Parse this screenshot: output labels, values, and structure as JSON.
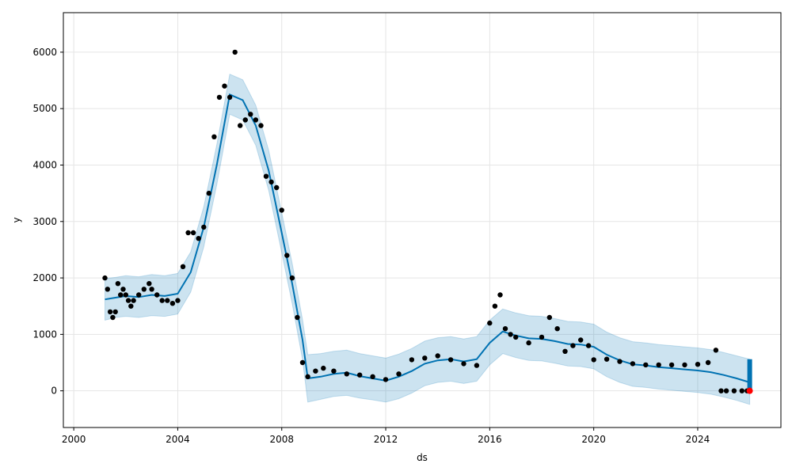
{
  "chart_data": {
    "type": "line",
    "title": "",
    "xlabel": "ds",
    "ylabel": "y",
    "xlim": [
      1999.6,
      2027.2
    ],
    "ylim": [
      -650,
      6700
    ],
    "grid": true,
    "x_ticks": [
      2000,
      2004,
      2008,
      2012,
      2016,
      2020,
      2024
    ],
    "x_tick_labels": [
      "2000",
      "2004",
      "2008",
      "2012",
      "2016",
      "2020",
      "2024"
    ],
    "y_ticks": [
      0,
      1000,
      2000,
      3000,
      4000,
      5000,
      6000
    ],
    "y_tick_labels": [
      "0",
      "1000",
      "2000",
      "3000",
      "4000",
      "5000",
      "6000"
    ],
    "colors": {
      "observed": "#000000",
      "forecast": "#0072B2",
      "interval": "#0072B2",
      "highlight": "#ff0000",
      "grid": "#e5e5e5"
    },
    "series": [
      {
        "role": "observed",
        "kind": "scatter",
        "x": [
          2001.2,
          2001.3,
          2001.4,
          2001.5,
          2001.6,
          2001.7,
          2001.8,
          2001.9,
          2002.0,
          2002.1,
          2002.2,
          2002.3,
          2002.5,
          2002.7,
          2002.9,
          2003.0,
          2003.2,
          2003.4,
          2003.6,
          2003.8,
          2004.0,
          2004.2,
          2004.4,
          2004.6,
          2004.8,
          2005.0,
          2005.2,
          2005.4,
          2005.6,
          2005.8,
          2006.0,
          2006.2,
          2006.4,
          2006.6,
          2006.8,
          2007.0,
          2007.2,
          2007.4,
          2007.6,
          2007.8,
          2008.0,
          2008.2,
          2008.4,
          2008.6,
          2008.8,
          2009.0,
          2009.3,
          2009.6,
          2010.0,
          2010.5,
          2011.0,
          2011.5,
          2012.0,
          2012.5,
          2013.0,
          2013.5,
          2014.0,
          2014.5,
          2015.0,
          2015.5,
          2016.0,
          2016.2,
          2016.4,
          2016.6,
          2016.8,
          2017.0,
          2017.5,
          2018.0,
          2018.3,
          2018.6,
          2018.9,
          2019.2,
          2019.5,
          2019.8,
          2020.0,
          2020.5,
          2021.0,
          2021.5,
          2022.0,
          2022.5,
          2023.0,
          2023.5,
          2024.0,
          2024.4,
          2024.7,
          2024.9,
          2025.1,
          2025.4,
          2025.7,
          2025.9
        ],
        "y": [
          2000,
          1800,
          1400,
          1300,
          1400,
          1900,
          1700,
          1800,
          1700,
          1600,
          1500,
          1600,
          1700,
          1800,
          1900,
          1800,
          1700,
          1600,
          1600,
          1550,
          1600,
          2200,
          2800,
          2800,
          2700,
          2900,
          3500,
          4500,
          5200,
          5400,
          5200,
          6000,
          4700,
          4800,
          4900,
          4800,
          4700,
          3800,
          3700,
          3600,
          3200,
          2400,
          2000,
          1300,
          500,
          250,
          350,
          400,
          350,
          300,
          280,
          250,
          200,
          300,
          550,
          580,
          620,
          550,
          480,
          450,
          1200,
          1500,
          1700,
          1100,
          1000,
          950,
          850,
          950,
          1300,
          1100,
          700,
          800,
          900,
          800,
          550,
          560,
          520,
          480,
          460,
          460,
          460,
          460,
          470,
          500,
          720,
          0,
          0,
          0,
          0,
          0
        ]
      },
      {
        "role": "forecast",
        "kind": "line",
        "x": [
          2001.2,
          2001.6,
          2002.0,
          2002.5,
          2003.0,
          2003.5,
          2004.0,
          2004.5,
          2005.0,
          2005.5,
          2006.0,
          2006.5,
          2007.0,
          2007.5,
          2008.0,
          2008.4,
          2008.8,
          2009.0,
          2009.5,
          2010.0,
          2010.5,
          2011.0,
          2011.5,
          2012.0,
          2012.5,
          2013.0,
          2013.5,
          2014.0,
          2014.5,
          2015.0,
          2015.5,
          2016.0,
          2016.5,
          2017.0,
          2017.5,
          2018.0,
          2018.5,
          2019.0,
          2019.5,
          2020.0,
          2020.5,
          2021.0,
          2021.5,
          2022.0,
          2022.5,
          2023.0,
          2023.5,
          2024.0,
          2024.5,
          2025.0,
          2025.5,
          2026.0
        ],
        "y": [
          1620,
          1650,
          1680,
          1660,
          1700,
          1680,
          1720,
          2100,
          2900,
          4000,
          5250,
          5150,
          4700,
          3900,
          2800,
          1900,
          900,
          220,
          250,
          300,
          320,
          260,
          220,
          180,
          250,
          350,
          480,
          540,
          560,
          520,
          560,
          850,
          1050,
          980,
          930,
          920,
          880,
          830,
          820,
          780,
          640,
          540,
          470,
          450,
          420,
          400,
          380,
          360,
          330,
          280,
          220,
          150
        ]
      },
      {
        "role": "uncertainty_interval",
        "kind": "area",
        "x": [
          2001.2,
          2001.6,
          2002.0,
          2002.5,
          2003.0,
          2003.5,
          2004.0,
          2004.5,
          2005.0,
          2005.5,
          2006.0,
          2006.5,
          2007.0,
          2007.5,
          2008.0,
          2008.4,
          2008.8,
          2009.0,
          2009.5,
          2010.0,
          2010.5,
          2011.0,
          2011.5,
          2012.0,
          2012.5,
          2013.0,
          2013.5,
          2014.0,
          2014.5,
          2015.0,
          2015.5,
          2016.0,
          2016.5,
          2017.0,
          2017.5,
          2018.0,
          2018.5,
          2019.0,
          2019.5,
          2020.0,
          2020.5,
          2021.0,
          2021.5,
          2022.0,
          2022.5,
          2023.0,
          2023.5,
          2024.0,
          2024.5,
          2025.0,
          2025.5,
          2026.0
        ],
        "y_lower": [
          1250,
          1300,
          1320,
          1300,
          1330,
          1320,
          1360,
          1750,
          2550,
          3650,
          4900,
          4800,
          4350,
          3550,
          2450,
          1550,
          550,
          -200,
          -150,
          -100,
          -80,
          -130,
          -160,
          -200,
          -140,
          -40,
          90,
          150,
          170,
          130,
          170,
          460,
          660,
          590,
          540,
          530,
          490,
          440,
          430,
          390,
          250,
          150,
          80,
          60,
          30,
          10,
          -10,
          -30,
          -60,
          -110,
          -170,
          -240
        ],
        "y_upper": [
          1990,
          2010,
          2040,
          2020,
          2060,
          2040,
          2080,
          2460,
          3260,
          4360,
          5610,
          5510,
          5060,
          4260,
          3160,
          2260,
          1260,
          640,
          660,
          700,
          720,
          660,
          620,
          580,
          650,
          750,
          880,
          940,
          960,
          920,
          960,
          1250,
          1450,
          1380,
          1330,
          1320,
          1280,
          1230,
          1220,
          1180,
          1040,
          940,
          870,
          850,
          820,
          800,
          780,
          760,
          730,
          680,
          620,
          560
        ]
      }
    ]
  }
}
